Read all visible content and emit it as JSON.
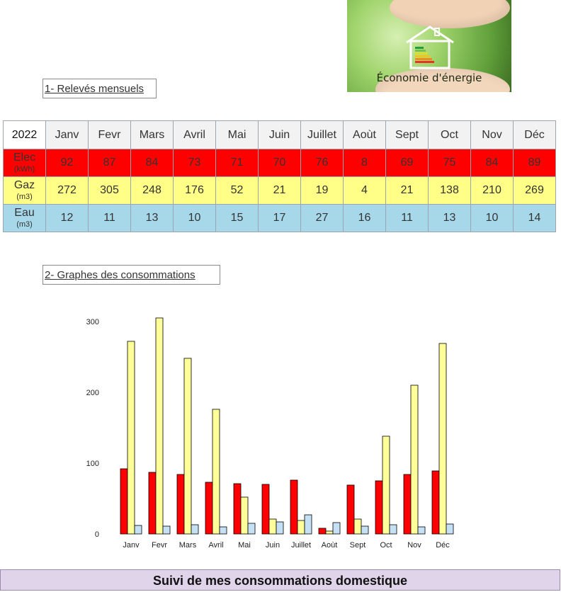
{
  "banner": {
    "caption": "Économie d'énergie"
  },
  "sections": {
    "releves_title": "1- Relevés mensuels",
    "graphes_title": "2- Graphes des consommations"
  },
  "table": {
    "year": "2022",
    "months": [
      "Janv",
      "Fevr",
      "Mars",
      "Avril",
      "Mai",
      "Juin",
      "Juillet",
      "Aoùt",
      "Sept",
      "Oct",
      "Nov",
      "Déc"
    ],
    "rows": {
      "elec": {
        "label": "Elec",
        "unit": "(kWh)",
        "values": [
          92,
          87,
          84,
          73,
          71,
          70,
          76,
          8,
          69,
          75,
          84,
          89
        ],
        "color": "#ff0000"
      },
      "gaz": {
        "label": "Gaz",
        "unit": "(m3)",
        "values": [
          272,
          305,
          248,
          176,
          52,
          21,
          19,
          4,
          21,
          138,
          210,
          269
        ],
        "color": "#ffff88"
      },
      "eau": {
        "label": "Eau",
        "unit": "(m3)",
        "values": [
          12,
          11,
          13,
          10,
          15,
          17,
          27,
          16,
          11,
          13,
          10,
          14
        ],
        "color": "#a7d8ea"
      }
    }
  },
  "chart_data": {
    "type": "bar",
    "categories": [
      "Janv",
      "Fevr",
      "Mars",
      "Avril",
      "Mai",
      "Juin",
      "Juillet",
      "Aoùt",
      "Sept",
      "Oct",
      "Nov",
      "Déc"
    ],
    "series": [
      {
        "values": [
          92,
          87,
          84,
          73,
          71,
          70,
          76,
          8,
          69,
          75,
          84,
          89
        ],
        "color": "#ff0000"
      },
      {
        "values": [
          272,
          305,
          248,
          176,
          52,
          21,
          19,
          4,
          21,
          138,
          210,
          269
        ],
        "color": "#ffff99"
      },
      {
        "values": [
          12,
          11,
          13,
          10,
          15,
          17,
          27,
          16,
          11,
          13,
          10,
          14
        ],
        "color": "#c5e0f5"
      }
    ],
    "yticks": [
      0,
      100,
      200,
      300
    ],
    "ylim": [
      0,
      305
    ],
    "grid": false,
    "legend": "none"
  },
  "footer": {
    "text": "Suivi de mes consommations domestique"
  }
}
